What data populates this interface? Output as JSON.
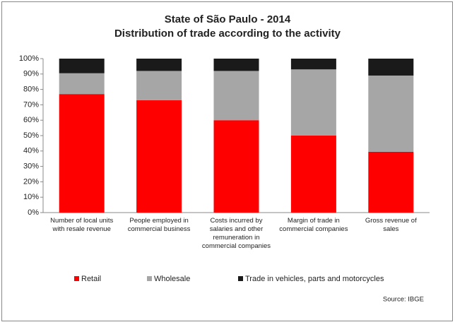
{
  "chart_data": {
    "type": "stacked-bar",
    "title": "State of São Paulo - 2014",
    "subtitle": "Distribution of trade according to the activity",
    "categories": [
      "Number of local units with resale revenue",
      "People employed in commercial business",
      "Costs incurred by salaries and other remuneration in commercial companies",
      "Margin of trade in commercial companies",
      "Gross revenue of sales"
    ],
    "series": [
      {
        "name": "Retail",
        "color": "#ff0000",
        "values": [
          77,
          73,
          60,
          50,
          39.5
        ]
      },
      {
        "name": "Wholesale",
        "color": "#a6a6a6",
        "values": [
          13.5,
          19,
          32,
          43,
          49.5
        ]
      },
      {
        "name": "Trade in vehicles, parts and motorcycles",
        "color": "#1a1a1a",
        "values": [
          9.5,
          8,
          8,
          7,
          11
        ]
      }
    ],
    "ylim": [
      0,
      100
    ],
    "yticks": [
      {
        "value": 0,
        "label": "0%"
      },
      {
        "value": 10,
        "label": "10%"
      },
      {
        "value": 20,
        "label": "20%"
      },
      {
        "value": 30,
        "label": "30%"
      },
      {
        "value": 40,
        "label": "40%"
      },
      {
        "value": 50,
        "label": "50%"
      },
      {
        "value": 60,
        "label": "60%"
      },
      {
        "value": 70,
        "label": "70%"
      },
      {
        "value": 80,
        "label": "80%"
      },
      {
        "value": 90,
        "label": "90%"
      },
      {
        "value": 100,
        "label": "100%"
      }
    ],
    "grid": false,
    "legend": "bottom",
    "source": "Source: IBGE"
  }
}
